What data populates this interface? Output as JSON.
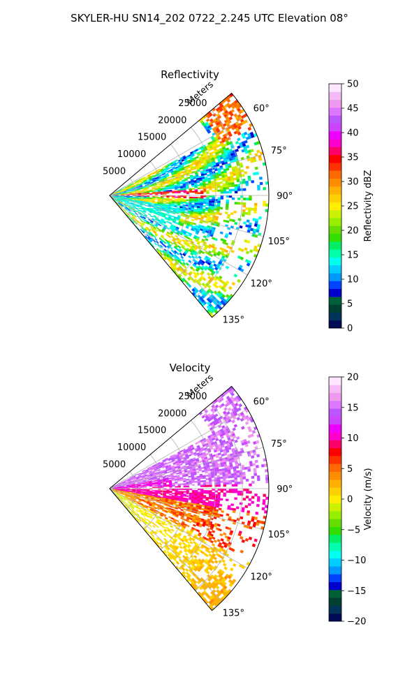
{
  "figure": {
    "title": "SKYLER-HU  SN14_202  0722_2.245 UTC Elevation 08°"
  },
  "chart_data": [
    {
      "type": "heatmap",
      "title": "Reflectivity",
      "r_axis_label": "Meters",
      "r_ticks": [
        5000,
        10000,
        15000,
        20000,
        25000
      ],
      "r_tick_labels": [
        "5000",
        "10000",
        "15000",
        "20000",
        "25000"
      ],
      "r_max": 30000,
      "theta_range_deg": [
        50,
        140
      ],
      "theta_ticks": [
        60,
        75,
        90,
        105,
        120,
        135
      ],
      "theta_tick_labels": [
        "60°",
        "75°",
        "90°",
        "105°",
        "120°",
        "135°"
      ],
      "colorbar": {
        "label": "Reflectivity dBZ",
        "range": [
          0,
          50
        ],
        "ticks": [
          0,
          5,
          10,
          15,
          20,
          25,
          30,
          35,
          40,
          45,
          50
        ],
        "tick_labels": [
          "0",
          "5",
          "10",
          "15",
          "20",
          "25",
          "30",
          "35",
          "40",
          "45",
          "50"
        ],
        "colors": [
          "#000a55",
          "#003355",
          "#004030",
          "#00603a",
          "#0000cc",
          "#0044ff",
          "#0099ff",
          "#00ccff",
          "#00ffee",
          "#00ffaa",
          "#00ee66",
          "#33dd00",
          "#66dd00",
          "#99ee00",
          "#ccf000",
          "#ffee00",
          "#ffd000",
          "#ffb000",
          "#ff8c00",
          "#ff6a00",
          "#ff3300",
          "#ff0000",
          "#ff0066",
          "#ff00cc",
          "#ee00ff",
          "#cc44ff",
          "#bb55ff",
          "#dd77ff",
          "#ee99ee",
          "#f5bbf5",
          "#ffe6ff"
        ]
      },
      "grid": true
    },
    {
      "type": "heatmap",
      "title": "Velocity",
      "r_axis_label": "Meters",
      "r_ticks": [
        5000,
        10000,
        15000,
        20000,
        25000
      ],
      "r_tick_labels": [
        "5000",
        "10000",
        "15000",
        "20000",
        "25000"
      ],
      "r_max": 30000,
      "theta_range_deg": [
        50,
        140
      ],
      "theta_ticks": [
        60,
        75,
        90,
        105,
        120,
        135
      ],
      "theta_tick_labels": [
        "60°",
        "75°",
        "90°",
        "105°",
        "120°",
        "135°"
      ],
      "colorbar": {
        "label": "Velocity (m/s)",
        "range": [
          -20,
          20
        ],
        "ticks": [
          -20,
          -15,
          -10,
          -5,
          0,
          5,
          10,
          15,
          20
        ],
        "tick_labels": [
          "−20",
          "−15",
          "−10",
          "−5",
          "0",
          "5",
          "10",
          "15",
          "20"
        ],
        "colors": [
          "#000a55",
          "#003355",
          "#004030",
          "#00603a",
          "#0000cc",
          "#0044ff",
          "#0099ff",
          "#00ccff",
          "#00ffee",
          "#00ffaa",
          "#00ee66",
          "#33dd00",
          "#66dd00",
          "#99ee00",
          "#ccf000",
          "#ffee00",
          "#ffd000",
          "#ffb000",
          "#ff8c00",
          "#ff6a00",
          "#ff3300",
          "#ff0000",
          "#ff0066",
          "#ff00cc",
          "#ee00ff",
          "#cc44ff",
          "#bb55ff",
          "#dd77ff",
          "#ee99ee",
          "#f5bbf5",
          "#ffe6ff"
        ]
      },
      "grid": true
    }
  ]
}
